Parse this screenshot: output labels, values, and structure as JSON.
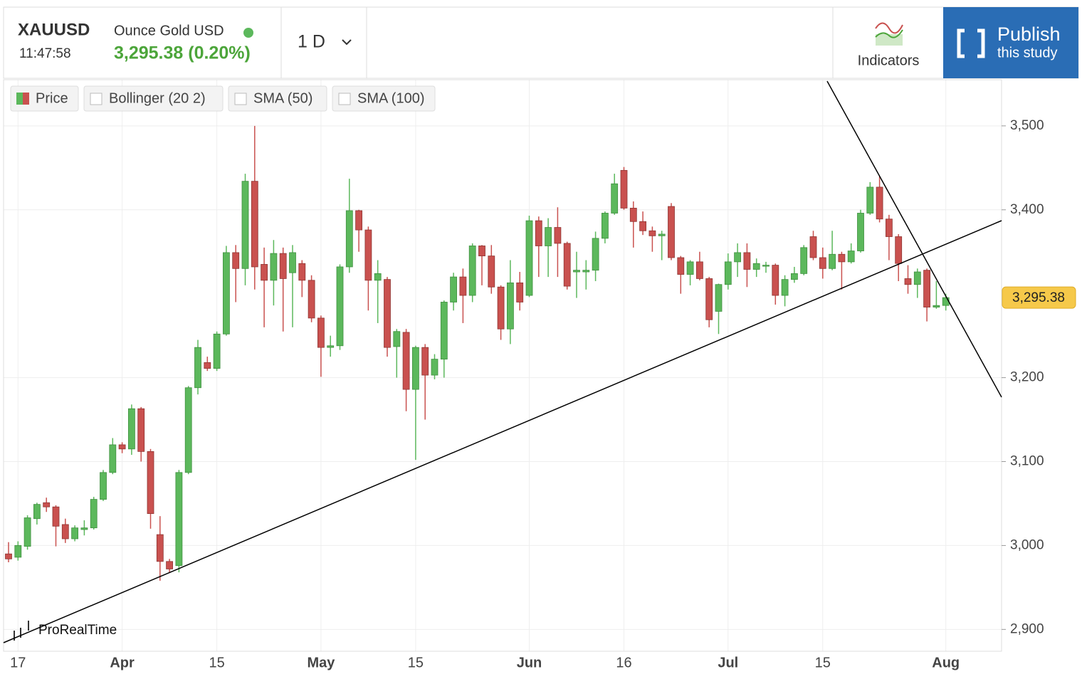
{
  "header": {
    "symbol": "XAUUSD",
    "time": "11:47:58",
    "name": "Ounce Gold USD",
    "price": "3,295.38 (0.20%)",
    "interval": "1 D",
    "indicators": "Indicators",
    "publish": "Publish",
    "publish_sub": "this study"
  },
  "legend": [
    "Price",
    "Bollinger (20 2)",
    "SMA (50)",
    "SMA (100)"
  ],
  "watermark": "ProRealTime",
  "chart_data": {
    "type": "candlestick",
    "categories": [
      null,
      "17",
      null,
      null,
      null,
      null,
      null,
      null,
      null,
      null,
      null,
      null,
      "Apr",
      null,
      null,
      null,
      null,
      null,
      null,
      null,
      null,
      null,
      "15",
      null,
      null,
      null,
      null,
      null,
      null,
      null,
      null,
      null,
      null,
      "May",
      null,
      null,
      null,
      null,
      null,
      null,
      null,
      null,
      null,
      "15",
      null,
      null,
      null,
      null,
      null,
      null,
      null,
      null,
      null,
      null,
      null,
      "Jun",
      null,
      null,
      null,
      null,
      null,
      null,
      null,
      null,
      null,
      "16",
      null,
      null,
      null,
      null,
      null,
      null,
      null,
      null,
      null,
      null,
      "Jul",
      null,
      null,
      null,
      null,
      null,
      null,
      null,
      null,
      null,
      "15",
      null,
      null,
      null,
      null,
      null,
      null,
      null,
      null,
      null,
      null,
      null,
      null,
      "Aug"
    ],
    "series": [
      {
        "name": "Price",
        "up_color": "#5cb85c",
        "down_color": "#c9514f",
        "open": [
          2990,
          2986,
          2999,
          3032,
          3051,
          3046,
          3025,
          3008,
          3019,
          3021,
          3055,
          3087,
          3120,
          3115,
          3163,
          3112,
          3013,
          2981,
          2976,
          3087,
          3188,
          3218,
          3211,
          3252,
          3349,
          3330,
          3434,
          3335,
          3316,
          3348,
          3325,
          3336,
          3316,
          3271,
          3236,
          3238,
          3332,
          3399,
          3376,
          3316,
          3317,
          3237,
          3254,
          3186,
          3236,
          3203,
          3222,
          3290,
          3320,
          3298,
          3357,
          3345,
          3308,
          3258,
          3313,
          3298,
          3387,
          3357,
          3379,
          3360,
          3326,
          3326,
          3328,
          3366,
          3396,
          3447,
          3402,
          3386,
          3375,
          3369,
          3404,
          3343,
          3323,
          3338,
          3318,
          3279,
          3311,
          3338,
          3349,
          3329,
          3333,
          3334,
          3298,
          3317,
          3324,
          3368,
          3343,
          3330,
          3347,
          3338,
          3351,
          3396,
          3427,
          3389,
          3368,
          3318,
          3311,
          3328,
          3284,
          3286
        ],
        "high": [
          3004,
          3005,
          3036,
          3051,
          3057,
          3048,
          3032,
          3024,
          3030,
          3058,
          3090,
          3128,
          3123,
          3168,
          3165,
          3115,
          3035,
          2984,
          3090,
          3190,
          3245,
          3225,
          3255,
          3357,
          3358,
          3443,
          3500,
          3355,
          3364,
          3355,
          3358,
          3340,
          3322,
          3274,
          3250,
          3335,
          3437,
          3400,
          3380,
          3340,
          3320,
          3258,
          3258,
          3238,
          3240,
          3228,
          3292,
          3325,
          3330,
          3360,
          3358,
          3358,
          3310,
          3340,
          3326,
          3393,
          3392,
          3390,
          3403,
          3362,
          3350,
          3340,
          3374,
          3398,
          3443,
          3451,
          3410,
          3398,
          3380,
          3375,
          3408,
          3345,
          3340,
          3350,
          3320,
          3312,
          3348,
          3360,
          3360,
          3342,
          3338,
          3336,
          3322,
          3332,
          3358,
          3375,
          3355,
          3375,
          3350,
          3360,
          3400,
          3433,
          3440,
          3394,
          3371,
          3334,
          3330,
          3330,
          3315,
          3300
        ],
        "low": [
          2980,
          2982,
          2995,
          3025,
          3040,
          2999,
          3003,
          3005,
          3012,
          3019,
          3053,
          3085,
          3110,
          3108,
          3100,
          3020,
          2958,
          2968,
          2968,
          3085,
          3180,
          3208,
          3208,
          3250,
          3290,
          3310,
          3305,
          3260,
          3286,
          3255,
          3260,
          3296,
          3266,
          3201,
          3225,
          3233,
          3325,
          3350,
          3280,
          3265,
          3225,
          3200,
          3160,
          3102,
          3150,
          3198,
          3200,
          3280,
          3265,
          3290,
          3310,
          3300,
          3245,
          3240,
          3280,
          3296,
          3320,
          3320,
          3320,
          3305,
          3295,
          3305,
          3315,
          3360,
          3394,
          3400,
          3355,
          3370,
          3350,
          3340,
          3340,
          3300,
          3310,
          3316,
          3260,
          3252,
          3305,
          3320,
          3308,
          3320,
          3325,
          3287,
          3285,
          3313,
          3322,
          3340,
          3318,
          3328,
          3305,
          3336,
          3349,
          3394,
          3385,
          3340,
          3315,
          3300,
          3295,
          3267,
          3282,
          3280
        ],
        "close": [
          2984,
          3000,
          3033,
          3049,
          3046,
          3023,
          3008,
          3021,
          3021,
          3055,
          3087,
          3120,
          3115,
          3163,
          3112,
          3038,
          2981,
          2972,
          3087,
          3188,
          3236,
          3211,
          3252,
          3349,
          3330,
          3434,
          3332,
          3316,
          3348,
          3318,
          3349,
          3316,
          3271,
          3236,
          3238,
          3332,
          3399,
          3376,
          3316,
          3324,
          3236,
          3255,
          3186,
          3236,
          3203,
          3222,
          3290,
          3320,
          3298,
          3357,
          3345,
          3308,
          3258,
          3313,
          3290,
          3387,
          3357,
          3379,
          3360,
          3309,
          3328,
          3328,
          3366,
          3396,
          3431,
          3402,
          3386,
          3375,
          3369,
          3371,
          3343,
          3323,
          3338,
          3318,
          3269,
          3311,
          3338,
          3349,
          3329,
          3336,
          3334,
          3298,
          3317,
          3324,
          3355,
          3343,
          3330,
          3347,
          3338,
          3351,
          3396,
          3427,
          3389,
          3368,
          3336,
          3311,
          3326,
          3284,
          3286,
          3295.38
        ]
      }
    ],
    "ylim": [
      2874,
      3555
    ],
    "yticks": [
      {
        "value": 2900,
        "label": "2,900"
      },
      {
        "value": 3000,
        "label": "3,000"
      },
      {
        "value": 3100,
        "label": "3,100"
      },
      {
        "value": 3200,
        "label": "3,200"
      },
      {
        "value": 3400,
        "label": "3,400"
      },
      {
        "value": 3500,
        "label": "3,500"
      }
    ],
    "price_tag": {
      "value": 3295.38,
      "label": "3,295.38"
    },
    "grid": true
  }
}
